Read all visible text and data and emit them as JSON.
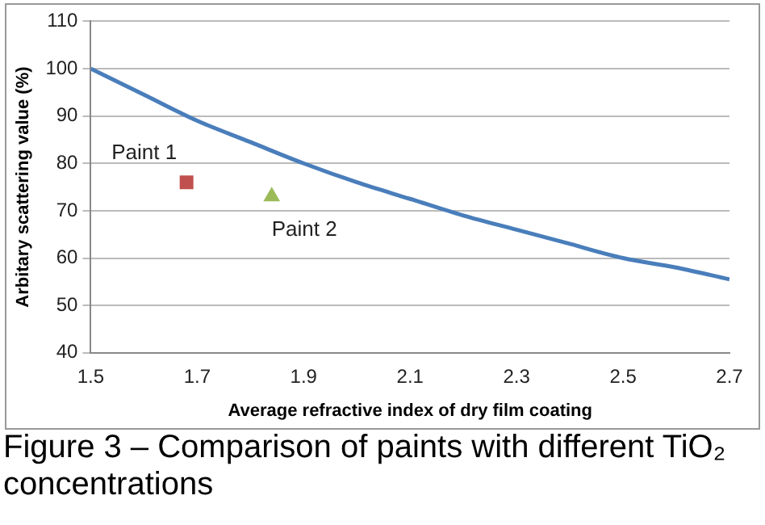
{
  "chart_data": {
    "type": "scatter",
    "xlabel": "Average refractive index of dry film coating",
    "ylabel": "Arbitary scattering value (%)",
    "annotations": [
      "Figure 3 – Comparison of paints with different TiO₂ concentrations"
    ],
    "series": [
      {
        "type": "line",
        "color": "#4a7ebb",
        "marker": "none",
        "x": [
          1.5,
          1.6,
          1.7,
          1.8,
          1.9,
          2.0,
          2.1,
          2.2,
          2.3,
          2.4,
          2.5,
          2.6,
          2.7
        ],
        "values": [
          100,
          94.5,
          89,
          84.5,
          80,
          76,
          72.5,
          69,
          66,
          63,
          60,
          58,
          55.5
        ]
      },
      {
        "name": "Paint 1",
        "color": "#c0504d",
        "marker": "square",
        "x": [
          1.68
        ],
        "values": [
          76
        ]
      },
      {
        "name": "Paint 2",
        "color": "#9bbb59",
        "marker": "triangle",
        "x": [
          1.84
        ],
        "values": [
          73
        ]
      }
    ],
    "xlim": [
      1.5,
      2.7
    ],
    "xticks": [
      1.5,
      1.7,
      1.9,
      2.1,
      2.3,
      2.5,
      2.7
    ],
    "ylim": [
      40,
      110
    ],
    "yticks": [
      40,
      50,
      60,
      70,
      80,
      90,
      100,
      110
    ],
    "grid": "y",
    "legend": false
  }
}
